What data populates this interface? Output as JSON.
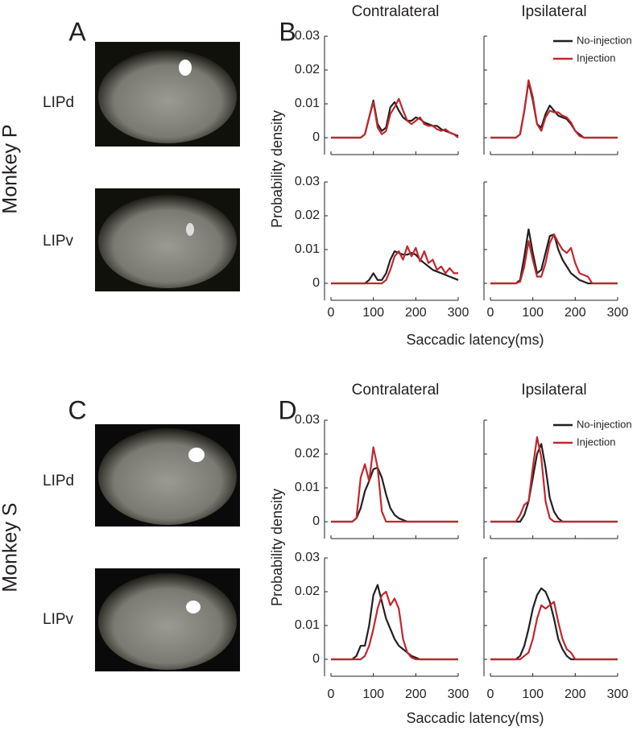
{
  "monkeys": [
    {
      "name": "Monkey P",
      "image_panel": "A",
      "chart_panel": "B",
      "regions": [
        "LIPd",
        "LIPv"
      ],
      "columns": [
        "Contralateral",
        "Ipsilateral"
      ],
      "ylabel": "Probability density",
      "xlabel": "Saccadic latency(ms)"
    },
    {
      "name": "Monkey S",
      "image_panel": "C",
      "chart_panel": "D",
      "regions": [
        "LIPd",
        "LIPv"
      ],
      "columns": [
        "Contralateral",
        "Ipsilateral"
      ],
      "ylabel": "Probability density",
      "xlabel": "Saccadic latency(ms)"
    }
  ],
  "chart_data": [
    {
      "type": "line",
      "x": [
        0,
        50,
        60,
        70,
        80,
        90,
        100,
        110,
        120,
        130,
        140,
        150,
        160,
        170,
        180,
        190,
        200,
        210,
        220,
        230,
        240,
        250,
        260,
        270,
        280,
        290,
        300
      ],
      "xlim": [
        0,
        300
      ],
      "ylim": [
        -0.005,
        0.03
      ],
      "xticks": [
        0,
        100,
        200,
        300
      ],
      "yticks": [
        0,
        0.01,
        0.02,
        0.03
      ],
      "series": [
        {
          "color": "#231f20",
          "values": [
            0,
            0,
            0,
            0,
            0.001,
            0.006,
            0.011,
            0.004,
            0.002,
            0.003,
            0.009,
            0.0105,
            0.008,
            0.006,
            0.005,
            0.005,
            0.006,
            0.0055,
            0.0045,
            0.004,
            0.0035,
            0.0035,
            0.0025,
            0.002,
            0.0015,
            0.001,
            0.0005
          ]
        },
        {
          "color": "#c1272d",
          "values": [
            0,
            0,
            0,
            0,
            0.001,
            0.006,
            0.0105,
            0.003,
            0.001,
            0.002,
            0.007,
            0.009,
            0.0115,
            0.008,
            0.005,
            0.004,
            0.005,
            0.006,
            0.004,
            0.0035,
            0.0035,
            0.0025,
            0.002,
            0.0025,
            0.0015,
            0.001,
            0
          ]
        }
      ]
    },
    {
      "type": "line",
      "x": [
        0,
        50,
        60,
        70,
        80,
        90,
        100,
        110,
        120,
        130,
        140,
        150,
        160,
        170,
        180,
        190,
        200,
        210,
        220,
        230,
        240,
        250,
        260,
        270,
        280,
        290,
        300
      ],
      "xlim": [
        0,
        300
      ],
      "ylim": [
        -0.005,
        0.03
      ],
      "xticks": [
        0,
        100,
        200,
        300
      ],
      "yticks": [
        0,
        0.01,
        0.02,
        0.03
      ],
      "legend": "upper right",
      "series": [
        {
          "name": "No-injection",
          "color": "#231f20",
          "values": [
            0,
            0,
            0,
            0.001,
            0.008,
            0.0165,
            0.011,
            0.004,
            0.003,
            0.007,
            0.0095,
            0.008,
            0.0065,
            0.006,
            0.0055,
            0.004,
            0.002,
            0.001,
            0,
            0,
            0,
            0,
            0,
            0,
            0,
            0,
            0
          ]
        },
        {
          "name": "Injection",
          "color": "#c1272d",
          "values": [
            0,
            0,
            0,
            0.001,
            0.008,
            0.017,
            0.012,
            0.004,
            0.002,
            0.006,
            0.008,
            0.0075,
            0.0075,
            0.0065,
            0.006,
            0.0045,
            0.002,
            0.0005,
            0,
            0,
            0,
            0,
            0,
            0,
            0,
            0,
            0
          ]
        }
      ]
    },
    {
      "type": "line",
      "x": [
        0,
        50,
        60,
        70,
        80,
        90,
        100,
        110,
        120,
        130,
        140,
        150,
        160,
        170,
        180,
        190,
        200,
        210,
        220,
        230,
        240,
        250,
        260,
        270,
        280,
        290,
        300
      ],
      "xlim": [
        0,
        300
      ],
      "ylim": [
        -0.005,
        0.03
      ],
      "xticks": [
        0,
        100,
        200,
        300
      ],
      "yticks": [
        0,
        0.01,
        0.02,
        0.03
      ],
      "series": [
        {
          "color": "#231f20",
          "values": [
            0,
            0,
            0,
            0,
            0,
            0.001,
            0.003,
            0.001,
            0.001,
            0.003,
            0.007,
            0.0095,
            0.009,
            0.0085,
            0.0085,
            0.009,
            0.0085,
            0.007,
            0.006,
            0.005,
            0.004,
            0.0035,
            0.003,
            0.0025,
            0.002,
            0.0015,
            0.001
          ]
        },
        {
          "color": "#c1272d",
          "values": [
            0,
            0,
            0,
            0,
            0,
            0,
            0,
            0,
            0,
            0.001,
            0.004,
            0.008,
            0.0095,
            0.007,
            0.011,
            0.008,
            0.0105,
            0.0065,
            0.0095,
            0.006,
            0.007,
            0.004,
            0.005,
            0.003,
            0.0045,
            0.003,
            0.003
          ]
        }
      ]
    },
    {
      "type": "line",
      "x": [
        0,
        50,
        60,
        70,
        80,
        90,
        100,
        110,
        120,
        130,
        140,
        150,
        160,
        170,
        180,
        190,
        200,
        210,
        220,
        230,
        240,
        250,
        260,
        270,
        280,
        290,
        300
      ],
      "xlim": [
        0,
        300
      ],
      "ylim": [
        -0.005,
        0.03
      ],
      "xticks": [
        0,
        100,
        200,
        300
      ],
      "yticks": [
        0,
        0.01,
        0.02,
        0.03
      ],
      "series": [
        {
          "color": "#231f20",
          "values": [
            0,
            0,
            0,
            0.001,
            0.008,
            0.016,
            0.009,
            0.003,
            0.004,
            0.009,
            0.014,
            0.0145,
            0.01,
            0.007,
            0.005,
            0.003,
            0.002,
            0.001,
            0.0005,
            0,
            0,
            0,
            0,
            0,
            0,
            0,
            0
          ]
        },
        {
          "color": "#c1272d",
          "values": [
            0,
            0,
            0,
            0.0005,
            0.005,
            0.0125,
            0.007,
            0.002,
            0.002,
            0.006,
            0.012,
            0.0145,
            0.012,
            0.01,
            0.009,
            0.0105,
            0.006,
            0.003,
            0.0025,
            0.002,
            0,
            0,
            0,
            0,
            0,
            0,
            0
          ]
        }
      ]
    },
    {
      "type": "line",
      "x": [
        0,
        50,
        60,
        70,
        80,
        90,
        100,
        110,
        120,
        130,
        140,
        150,
        160,
        170,
        180,
        190,
        200,
        210,
        220,
        230,
        240,
        250,
        260,
        270,
        280,
        290,
        300
      ],
      "xlim": [
        0,
        300
      ],
      "ylim": [
        -0.005,
        0.03
      ],
      "xticks": [
        0,
        100,
        200,
        300
      ],
      "yticks": [
        0,
        0.01,
        0.02,
        0.03
      ],
      "series": [
        {
          "color": "#231f20",
          "values": [
            0,
            0,
            0.001,
            0.004,
            0.009,
            0.012,
            0.0155,
            0.016,
            0.013,
            0.008,
            0.004,
            0.002,
            0.001,
            0.0005,
            0,
            0,
            0,
            0,
            0,
            0,
            0,
            0,
            0,
            0,
            0,
            0,
            0
          ]
        },
        {
          "color": "#c1272d",
          "values": [
            0,
            0,
            0.001,
            0.013,
            0.017,
            0.012,
            0.022,
            0.016,
            0.003,
            0,
            0,
            0,
            0,
            0,
            0,
            0,
            0,
            0,
            0,
            0,
            0,
            0,
            0,
            0,
            0,
            0,
            0
          ]
        }
      ]
    },
    {
      "type": "line",
      "x": [
        0,
        50,
        60,
        70,
        80,
        90,
        100,
        110,
        120,
        130,
        140,
        150,
        160,
        170,
        180,
        190,
        200,
        210,
        220,
        230,
        240,
        250,
        260,
        270,
        280,
        290,
        300
      ],
      "xlim": [
        0,
        300
      ],
      "ylim": [
        -0.005,
        0.03
      ],
      "xticks": [
        0,
        100,
        200,
        300
      ],
      "yticks": [
        0,
        0.01,
        0.02,
        0.03
      ],
      "legend": "upper right",
      "series": [
        {
          "name": "No-injection",
          "color": "#231f20",
          "values": [
            0,
            0,
            0,
            0,
            0.002,
            0.006,
            0.013,
            0.02,
            0.023,
            0.016,
            0.007,
            0.003,
            0.001,
            0,
            0,
            0,
            0,
            0,
            0,
            0,
            0,
            0,
            0,
            0,
            0,
            0,
            0
          ]
        },
        {
          "name": "Injection",
          "color": "#c1272d",
          "values": [
            0,
            0,
            0,
            0.002,
            0.005,
            0.006,
            0.016,
            0.025,
            0.019,
            0.006,
            0.001,
            0,
            0,
            0,
            0,
            0,
            0,
            0,
            0,
            0,
            0,
            0,
            0,
            0,
            0,
            0,
            0
          ]
        }
      ]
    },
    {
      "type": "line",
      "x": [
        0,
        50,
        60,
        70,
        80,
        90,
        100,
        110,
        120,
        130,
        140,
        150,
        160,
        170,
        180,
        190,
        200,
        210,
        220,
        230,
        240,
        250,
        260,
        270,
        280,
        290,
        300
      ],
      "xlim": [
        0,
        300
      ],
      "ylim": [
        -0.005,
        0.03
      ],
      "xticks": [
        0,
        100,
        200,
        300
      ],
      "yticks": [
        0,
        0.01,
        0.02,
        0.03
      ],
      "series": [
        {
          "color": "#231f20",
          "values": [
            0,
            0,
            0.001,
            0.004,
            0.004,
            0.01,
            0.019,
            0.022,
            0.017,
            0.012,
            0.009,
            0.006,
            0.004,
            0.003,
            0.002,
            0.001,
            0.0005,
            0,
            0,
            0,
            0,
            0,
            0,
            0,
            0,
            0,
            0
          ]
        },
        {
          "color": "#c1272d",
          "values": [
            0,
            0,
            0,
            0,
            0.001,
            0.004,
            0.009,
            0.015,
            0.019,
            0.02,
            0.016,
            0.018,
            0.015,
            0.006,
            0.002,
            0.0005,
            0,
            0,
            0,
            0,
            0,
            0,
            0,
            0,
            0,
            0,
            0
          ]
        }
      ]
    },
    {
      "type": "line",
      "x": [
        0,
        50,
        60,
        70,
        80,
        90,
        100,
        110,
        120,
        130,
        140,
        150,
        160,
        170,
        180,
        190,
        200,
        210,
        220,
        230,
        240,
        250,
        260,
        270,
        280,
        290,
        300
      ],
      "xlim": [
        0,
        300
      ],
      "ylim": [
        -0.005,
        0.03
      ],
      "xticks": [
        0,
        100,
        200,
        300
      ],
      "yticks": [
        0,
        0.01,
        0.02,
        0.03
      ],
      "series": [
        {
          "color": "#231f20",
          "values": [
            0,
            0,
            0,
            0.001,
            0.004,
            0.009,
            0.015,
            0.019,
            0.021,
            0.02,
            0.017,
            0.012,
            0.006,
            0.003,
            0.001,
            0,
            0,
            0,
            0,
            0,
            0,
            0,
            0,
            0,
            0,
            0,
            0
          ]
        },
        {
          "color": "#c1272d",
          "values": [
            0,
            0,
            0,
            0,
            0.001,
            0.002,
            0.006,
            0.012,
            0.016,
            0.015,
            0.016,
            0.017,
            0.011,
            0.006,
            0.003,
            0.002,
            0,
            0,
            0,
            0,
            0,
            0,
            0,
            0,
            0,
            0,
            0
          ]
        }
      ]
    }
  ]
}
